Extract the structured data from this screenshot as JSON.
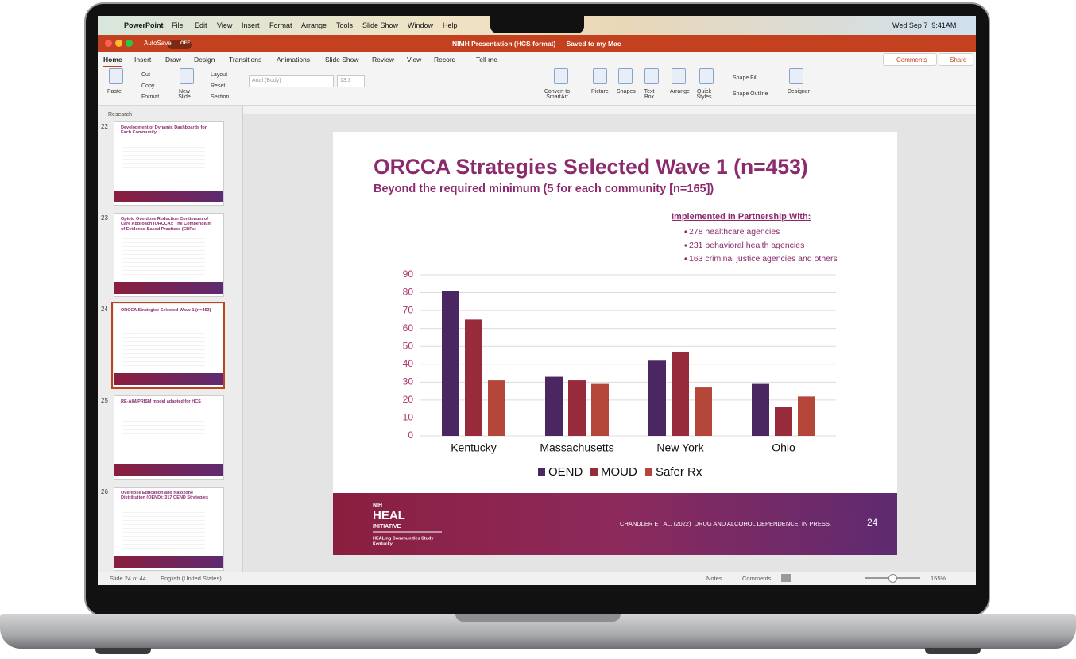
{
  "menu_bar": {
    "app": "PowerPoint",
    "items": [
      "File",
      "Edit",
      "View",
      "Insert",
      "Format",
      "Arrange",
      "Tools",
      "Slide Show",
      "Window",
      "Help"
    ],
    "clock": "Wed Sep 7  9:41AM"
  },
  "title_bar": {
    "autosave": "AutoSave",
    "autosave_state": "OFF",
    "document_title": "NIMH Presentation (HCS format) — Saved to my Mac"
  },
  "ribbon": {
    "tabs": [
      "Home",
      "Insert",
      "Draw",
      "Design",
      "Transitions",
      "Animations",
      "Slide Show",
      "Review",
      "View",
      "Record",
      "Tell me"
    ],
    "comments": "Comments",
    "share": "Share",
    "buttons": [
      "Paste",
      "Cut",
      "Copy",
      "Format",
      "New Slide",
      "Layout",
      "Reset",
      "Section",
      "Arial (Body)",
      "13.3",
      "Convert to SmartArt",
      "Picture",
      "Shapes",
      "Text Box",
      "Arrange",
      "Quick Styles",
      "Shape Fill",
      "Shape Outline",
      "Designer"
    ]
  },
  "slide_pane": {
    "section": "Research",
    "thumbnails": [
      {
        "number": "22",
        "title": "Development of Dynamic Dashboards for Each Community"
      },
      {
        "number": "23",
        "title": "Opioid Overdose Reduction Continuum of Care Approach (ORCCA): The Compendium of Evidence-Based Practices (EBPs)"
      },
      {
        "number": "24",
        "title": "ORCCA Strategies Selected Wave 1 (n=453)"
      },
      {
        "number": "25",
        "title": "RE-AIM/PRISM model adapted for HCS"
      },
      {
        "number": "26",
        "title": "Overdose Education and Naloxone Distribution (OEND): 317 OEND Strategies"
      }
    ]
  },
  "slide": {
    "title": "ORCCA Strategies Selected Wave 1 (n=453)",
    "subtitle": "Beyond the required minimum (5 for each community [n=165])",
    "partners_heading": "Implemented In Partnership With:",
    "partners": [
      "278 healthcare agencies",
      "231 behavioral health agencies",
      "163 criminal justice agencies and others"
    ],
    "chart_data": {
      "type": "bar",
      "categories": [
        "Kentucky",
        "Massachusetts",
        "New York",
        "Ohio"
      ],
      "series": [
        {
          "name": "OEND",
          "color": "#4a2760",
          "values": [
            81,
            33,
            42,
            29
          ]
        },
        {
          "name": "MOUD",
          "color": "#972b3c",
          "values": [
            65,
            31,
            47,
            16
          ]
        },
        {
          "name": "Safer Rx",
          "color": "#b5473a",
          "values": [
            31,
            29,
            27,
            22
          ]
        }
      ],
      "ylim": [
        0,
        90
      ],
      "yticks": [
        0,
        10,
        20,
        30,
        40,
        50,
        60,
        70,
        80,
        90
      ],
      "grid": true
    },
    "footer": {
      "logo_top": "NIH",
      "logo_main": "HEAL",
      "logo_sub": "INITIATIVE",
      "study": "HEALing Communities Study",
      "site": "Kentucky",
      "citation": "CHANDLER ET AL. (2022)  DRUG AND ALCOHOL DEPENDENCE, IN PRESS.",
      "page": "24"
    }
  },
  "status_bar": {
    "slide_position": "Slide 24 of 44",
    "language": "English (United States)",
    "notes": "Notes",
    "comments": "Comments",
    "zoom": "155%"
  }
}
